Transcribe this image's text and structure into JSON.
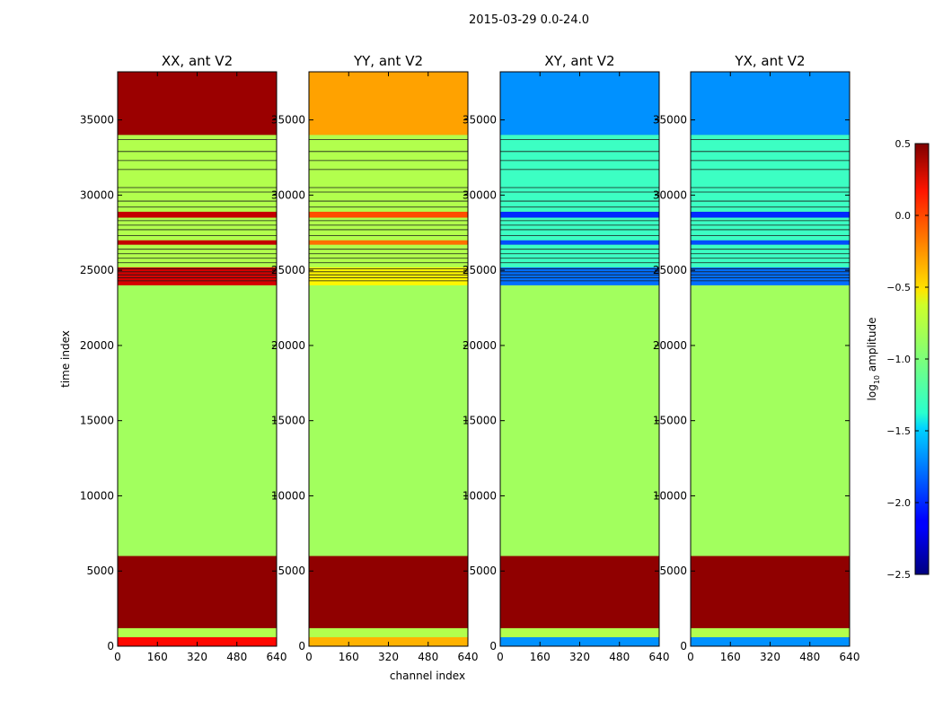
{
  "chart_data": {
    "type": "heatmap",
    "suptitle": "2015-03-29 0.0-24.0",
    "colormap": "jet",
    "xlabel": "channel index",
    "ylabel": "time index",
    "xlim": [
      0,
      640
    ],
    "ylim": [
      0,
      38200
    ],
    "xticks": [
      0,
      160,
      320,
      480,
      640
    ],
    "yticks": [
      0,
      5000,
      10000,
      15000,
      20000,
      25000,
      30000,
      35000
    ],
    "colorbar": {
      "label_prefix": "log",
      "label_sub": "10",
      "label_suffix": " amplitude",
      "range": [
        -2.5,
        0.5
      ],
      "ticks": [
        0.5,
        0.0,
        -0.5,
        -1.0,
        -1.5,
        -2.0,
        -2.5
      ],
      "tick_labels": [
        "0.5",
        "0.0",
        "−0.5",
        "−1.0",
        "−1.5",
        "−2.0",
        "−2.5"
      ]
    },
    "panels": [
      {
        "title": "XX, ant V2",
        "bands": [
          {
            "t0": 0,
            "t1": 600,
            "value": 0.1
          },
          {
            "t0": 600,
            "t1": 1200,
            "value": -0.85
          },
          {
            "t0": 1200,
            "t1": 6000,
            "value": 0.45
          },
          {
            "t0": 6000,
            "t1": 24000,
            "value": -0.9
          },
          {
            "t0": 24000,
            "t1": 25200,
            "value": 0.25
          },
          {
            "t0": 25200,
            "t1": 26700,
            "value": -0.85
          },
          {
            "t0": 26700,
            "t1": 27000,
            "value": 0.3
          },
          {
            "t0": 27000,
            "t1": 28500,
            "value": -0.85
          },
          {
            "t0": 28500,
            "t1": 28900,
            "value": 0.3
          },
          {
            "t0": 28900,
            "t1": 34000,
            "value": -0.85
          },
          {
            "t0": 34000,
            "t1": 38200,
            "value": 0.42
          }
        ]
      },
      {
        "title": "YY, ant V2",
        "bands": [
          {
            "t0": 0,
            "t1": 600,
            "value": -0.4
          },
          {
            "t0": 600,
            "t1": 1200,
            "value": -0.85
          },
          {
            "t0": 1200,
            "t1": 6000,
            "value": 0.45
          },
          {
            "t0": 6000,
            "t1": 24000,
            "value": -0.9
          },
          {
            "t0": 24000,
            "t1": 25200,
            "value": -0.6
          },
          {
            "t0": 25200,
            "t1": 26700,
            "value": -0.85
          },
          {
            "t0": 26700,
            "t1": 27000,
            "value": -0.2
          },
          {
            "t0": 27000,
            "t1": 28500,
            "value": -0.85
          },
          {
            "t0": 28500,
            "t1": 28900,
            "value": -0.1
          },
          {
            "t0": 28900,
            "t1": 34000,
            "value": -0.85
          },
          {
            "t0": 34000,
            "t1": 38200,
            "value": -0.35
          }
        ]
      },
      {
        "title": "XY, ant V2",
        "bands": [
          {
            "t0": 0,
            "t1": 600,
            "value": -1.7
          },
          {
            "t0": 600,
            "t1": 1200,
            "value": -0.85
          },
          {
            "t0": 1200,
            "t1": 6000,
            "value": 0.45
          },
          {
            "t0": 6000,
            "t1": 24000,
            "value": -0.9
          },
          {
            "t0": 24000,
            "t1": 25200,
            "value": -1.8
          },
          {
            "t0": 25200,
            "t1": 26700,
            "value": -1.2
          },
          {
            "t0": 26700,
            "t1": 27000,
            "value": -1.9
          },
          {
            "t0": 27000,
            "t1": 28500,
            "value": -1.2
          },
          {
            "t0": 28500,
            "t1": 28900,
            "value": -2.0
          },
          {
            "t0": 28900,
            "t1": 34000,
            "value": -1.2
          },
          {
            "t0": 34000,
            "t1": 38200,
            "value": -1.7
          }
        ]
      },
      {
        "title": "YX, ant V2",
        "bands": [
          {
            "t0": 0,
            "t1": 600,
            "value": -1.7
          },
          {
            "t0": 600,
            "t1": 1200,
            "value": -0.85
          },
          {
            "t0": 1200,
            "t1": 6000,
            "value": 0.45
          },
          {
            "t0": 6000,
            "t1": 24000,
            "value": -0.9
          },
          {
            "t0": 24000,
            "t1": 25200,
            "value": -1.8
          },
          {
            "t0": 25200,
            "t1": 26700,
            "value": -1.2
          },
          {
            "t0": 26700,
            "t1": 27000,
            "value": -1.9
          },
          {
            "t0": 27000,
            "t1": 28500,
            "value": -1.2
          },
          {
            "t0": 28500,
            "t1": 28900,
            "value": -2.0
          },
          {
            "t0": 28900,
            "t1": 34000,
            "value": -1.2
          },
          {
            "t0": 34000,
            "t1": 38200,
            "value": -1.7
          }
        ]
      }
    ],
    "flag_lines": [
      24300,
      24500,
      24700,
      24900,
      25100,
      25500,
      25800,
      26100,
      26400,
      27300,
      27700,
      28000,
      28300,
      29200,
      29600,
      30200,
      30500,
      31700,
      32300,
      32900,
      33700
    ]
  }
}
